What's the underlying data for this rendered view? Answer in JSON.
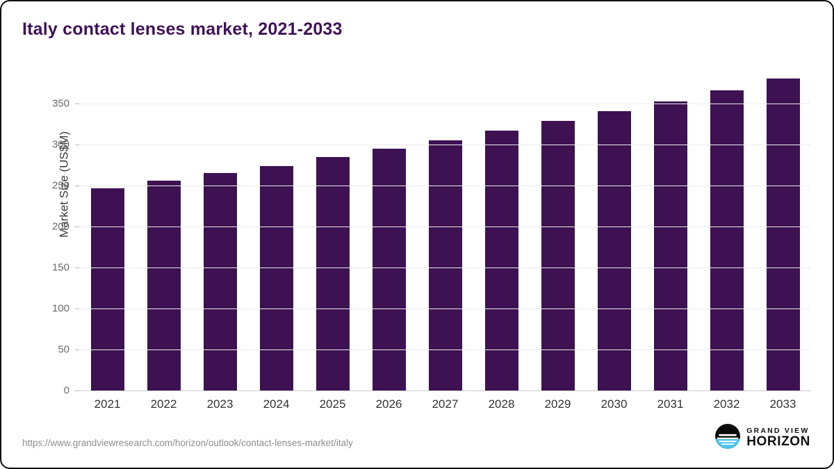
{
  "chart": {
    "title": "Italy contact lenses market, 2021-2033"
  },
  "chart_data": {
    "type": "bar",
    "title": "Italy contact lenses market, 2021-2033",
    "categories": [
      "2021",
      "2022",
      "2023",
      "2024",
      "2025",
      "2026",
      "2027",
      "2028",
      "2029",
      "2030",
      "2031",
      "2032",
      "2033"
    ],
    "values": [
      247,
      256,
      265,
      274,
      285,
      295,
      305,
      317,
      329,
      341,
      353,
      366,
      381
    ],
    "xlabel": "",
    "ylabel": "Market Size (US$M)",
    "ylim": [
      0,
      390
    ],
    "yticks": [
      0,
      50,
      100,
      150,
      200,
      250,
      300,
      350
    ],
    "grid": true,
    "legend": "none",
    "bar_color": "#3d1152",
    "gridline_color": "#ececec"
  },
  "footer": {
    "source_url": "https://www.grandviewresearch.com/horizon/outlook/contact-lenses-market/italy",
    "logo": {
      "top": "GRAND VIEW",
      "bottom": "HORIZON",
      "accent_color": "#4cc3ea",
      "icon": "horizon-circle-icon"
    }
  }
}
